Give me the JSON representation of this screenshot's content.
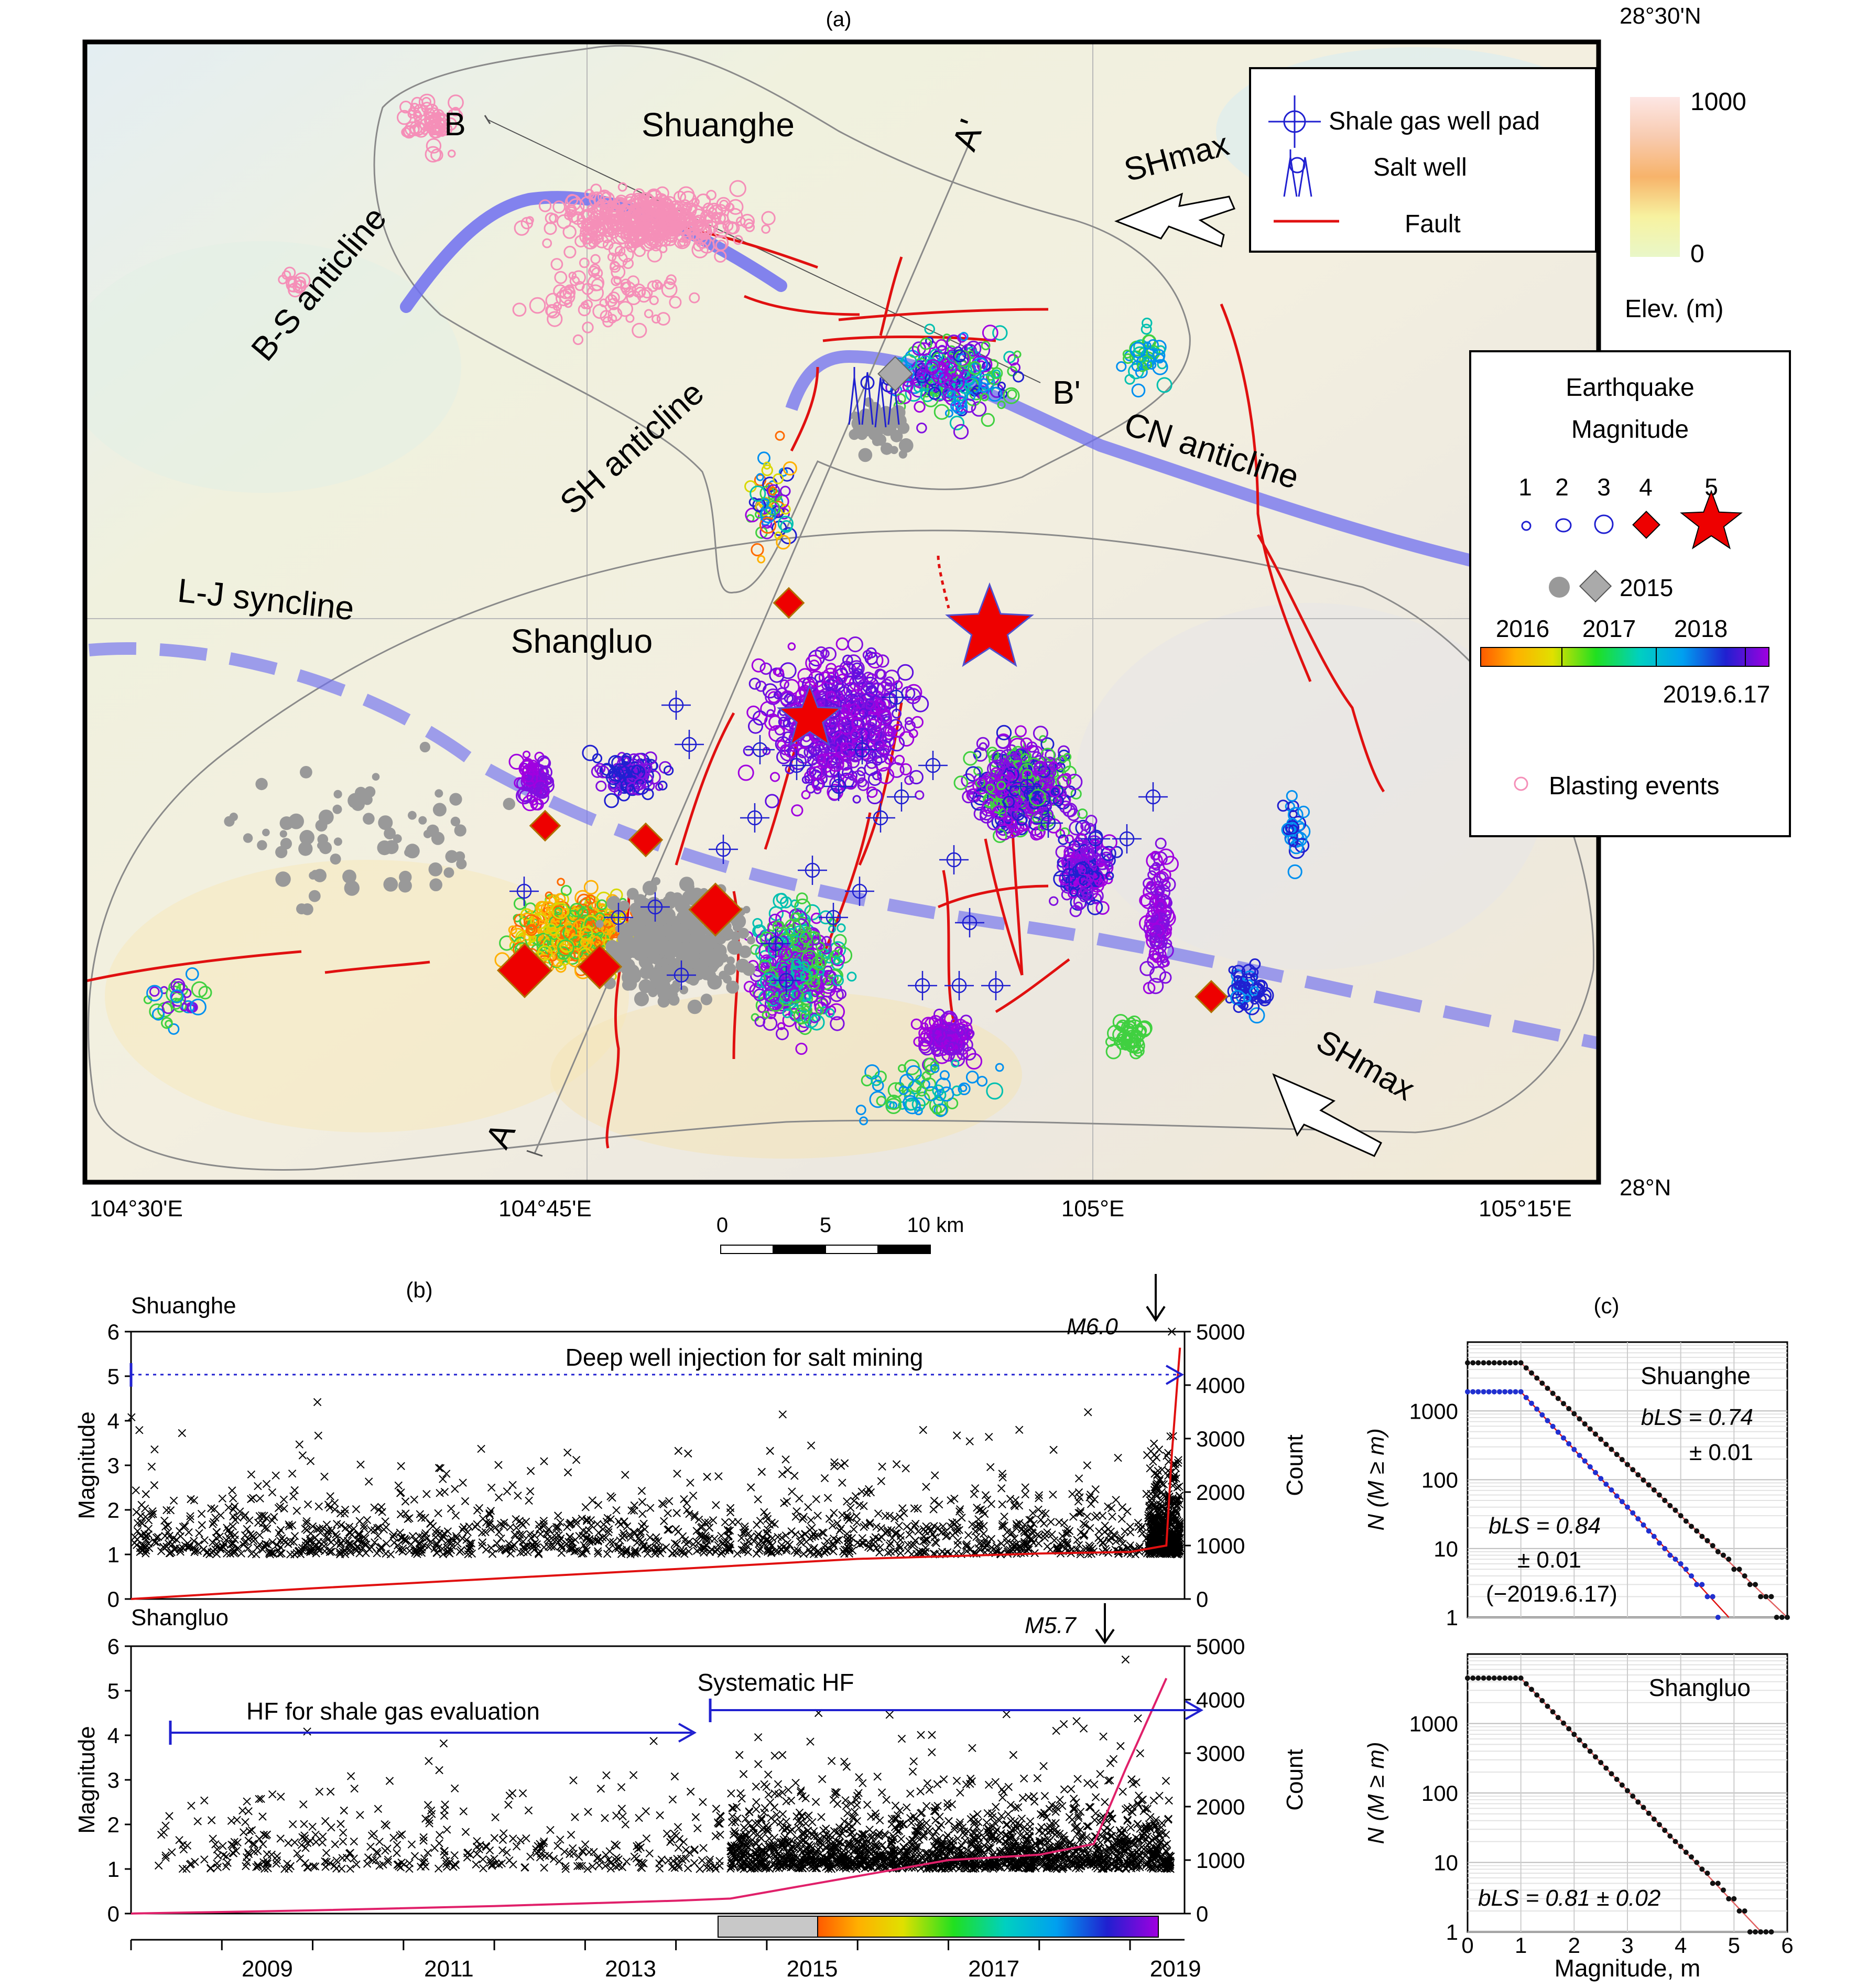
{
  "panel_a": {
    "label": "(a)",
    "lat_labels": [
      "28°30'N",
      "28°N"
    ],
    "lon_labels": [
      "104°30'E",
      "104°45'E",
      "105°E",
      "105°15'E"
    ],
    "region_labels": [
      "Shuanghe",
      "Shangluo"
    ],
    "structure_labels": [
      "B-S anticline",
      "SH anticline",
      "CN anticline",
      "L-J syncline"
    ],
    "profile_labels": [
      "A",
      "A'",
      "B",
      "B'"
    ],
    "shmax": [
      "SHmax",
      "SHmax"
    ],
    "legend": {
      "items": [
        "Shale gas well pad",
        "Salt well",
        "Fault"
      ],
      "elev_title": "Elev. (m)",
      "elev_ticks": [
        "1000",
        "0"
      ],
      "eq_title": [
        "Earthquake",
        "Magnitude"
      ],
      "magnitudes": [
        "1",
        "2",
        "3",
        "4",
        "5"
      ],
      "year2015": "2015",
      "years": [
        "2016",
        "2017",
        "2018"
      ],
      "end_date": "2019.6.17",
      "blasting": "Blasting events"
    },
    "scale_bar": [
      "0",
      "5",
      "10 km"
    ],
    "colors": {
      "fault": "#e01010",
      "anticline": "#6f6ff0",
      "boundary": "#888888",
      "blast": "#f58fb8",
      "m2015": "#999999",
      "quake_big": "#ee0000"
    }
  },
  "panel_b": {
    "label": "(b)",
    "ylabel": "Magnitude",
    "y2label": "Count",
    "yticks": [
      "0",
      "1",
      "2",
      "3",
      "4",
      "5",
      "6"
    ],
    "y2ticks": [
      "0",
      "1000",
      "2000",
      "3000",
      "4000",
      "5000"
    ],
    "year_ticks": [
      "2009",
      "2011",
      "2013",
      "2015",
      "2017",
      "2019"
    ],
    "shuanghe": {
      "title": "Shuanghe",
      "annot": "Deep well injection for salt mining",
      "mainshock_label": "M6.0"
    },
    "shangluo": {
      "title": "Shangluo",
      "annot1": "HF for shale gas evaluation",
      "annot2": "Systematic HF",
      "mainshock_label": "M5.7"
    }
  },
  "panel_c": {
    "label": "(c)",
    "ylabel": "N (M ≥ m)",
    "xlabel": "Magnitude, m",
    "xticks": [
      "0",
      "1",
      "2",
      "3",
      "4",
      "5",
      "6"
    ],
    "yticks": [
      "1",
      "10",
      "100",
      "1000"
    ],
    "shuanghe": {
      "title": "Shuanghe",
      "b1": "bLS = 0.74",
      "b1e": "± 0.01",
      "b2": "bLS = 0.84",
      "b2e": "± 0.01",
      "b2d": "(−2019.6.17)"
    },
    "shangluo": {
      "title": "Shangluo",
      "b": "bLS = 0.81 ± 0.02"
    }
  },
  "chart_data": [
    {
      "type": "scatter",
      "title": "Shuanghe",
      "xlabel": "",
      "ylabel": "Magnitude",
      "y2label": "Count",
      "xlim": [
        2008,
        2019.6
      ],
      "ylim": [
        0,
        6
      ],
      "y2lim": [
        0,
        5000
      ],
      "mainshock": {
        "t": 2019.46,
        "m": 6.0
      },
      "cumulative_count": {
        "t": [
          2008,
          2010,
          2012,
          2014,
          2016,
          2018,
          2019,
          2019.4,
          2019.46,
          2019.55
        ],
        "n": [
          0,
          200,
          380,
          560,
          750,
          850,
          880,
          1000,
          2700,
          4700
        ]
      }
    },
    {
      "type": "scatter",
      "title": "Shangluo",
      "xlabel": "",
      "ylabel": "Magnitude",
      "y2label": "Count",
      "xlim": [
        2008,
        2019.6
      ],
      "ylim": [
        0,
        6
      ],
      "y2lim": [
        0,
        5000
      ],
      "mainshock": {
        "t": 2018.95,
        "m": 5.7
      },
      "cumulative_count": {
        "t": [
          2008,
          2010,
          2012,
          2014,
          2014.6,
          2016,
          2017,
          2018,
          2018.6,
          2018.95,
          2019.4
        ],
        "n": [
          0,
          60,
          140,
          240,
          280,
          700,
          1000,
          1100,
          1300,
          2700,
          4400
        ]
      }
    },
    {
      "type": "scatter",
      "title": "Shuanghe",
      "xlabel": "Magnitude, m",
      "ylabel": "N (M ≥ m)",
      "yscale": "log",
      "xlim": [
        0,
        6
      ],
      "ylim": [
        1,
        10000
      ],
      "series": [
        {
          "name": "",
          "b": 0.74,
          "mc": 1.0,
          "n_mc": 5000,
          "mmax": 6.0
        },
        {
          "name": "(−2019.6.17)",
          "b": 0.84,
          "mc": 1.0,
          "n_mc": 1900,
          "mmax": 4.7
        }
      ]
    },
    {
      "type": "scatter",
      "title": "Shangluo",
      "xlabel": "Magnitude, m",
      "ylabel": "N (M ≥ m)",
      "yscale": "log",
      "xlim": [
        0,
        6
      ],
      "ylim": [
        1,
        10000
      ],
      "series": [
        {
          "name": "",
          "b": 0.81,
          "mc": 1.0,
          "n_mc": 4500,
          "mmax": 5.7
        }
      ]
    }
  ]
}
